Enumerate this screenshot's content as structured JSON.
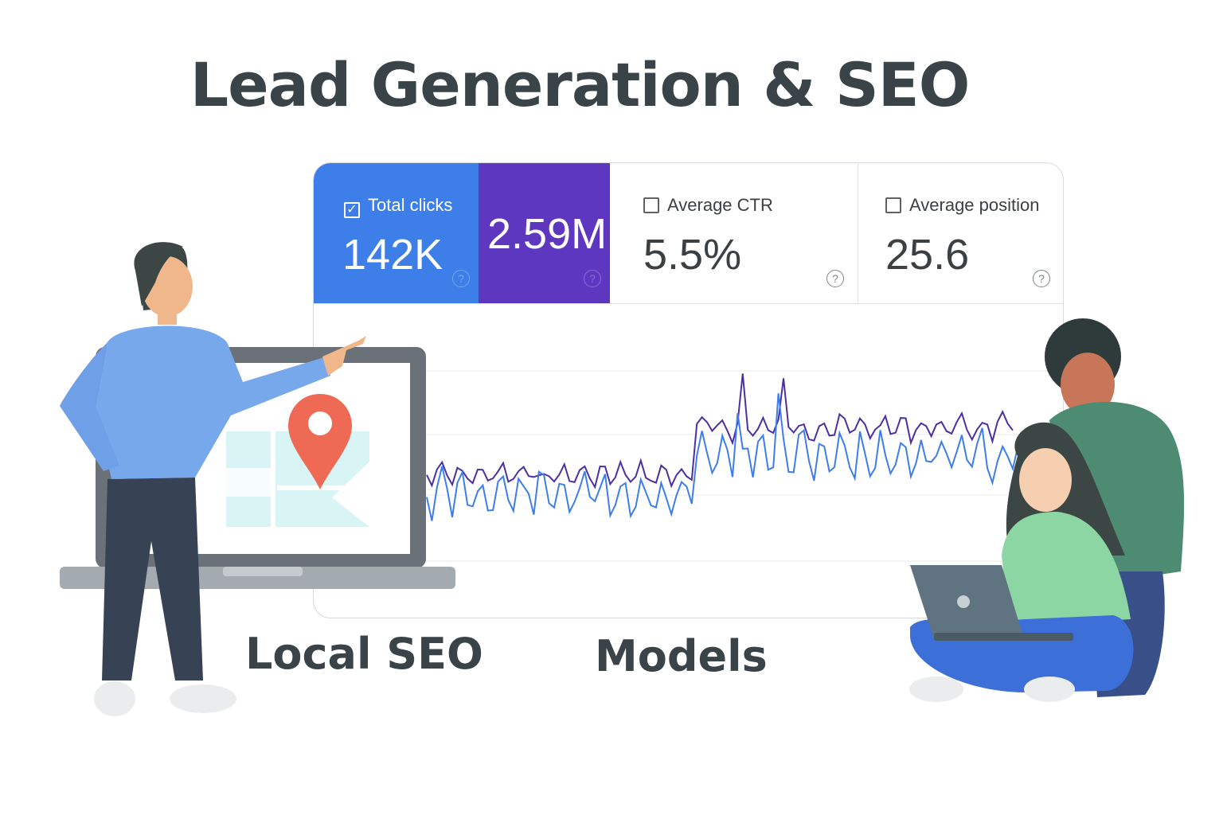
{
  "title": "Lead Generation & SEO",
  "metrics": [
    {
      "label": "Total clicks",
      "value": "142K",
      "checked": true
    },
    {
      "label": "",
      "value": "2.59M",
      "checked": true
    },
    {
      "label": "Average CTR",
      "value": "5.5%",
      "checked": false
    },
    {
      "label": "Average position",
      "value": "25.6",
      "checked": false
    }
  ],
  "help_glyph": "?",
  "check_glyph": "✓",
  "labels": {
    "local_seo": "Local SEO",
    "models": "Models"
  },
  "colors": {
    "clicks": "#3d7ee8",
    "impressions": "#5e37c0",
    "text": "#3a4448"
  },
  "icons": [
    "checkbox-icon",
    "help-icon",
    "map-pin-icon"
  ]
}
